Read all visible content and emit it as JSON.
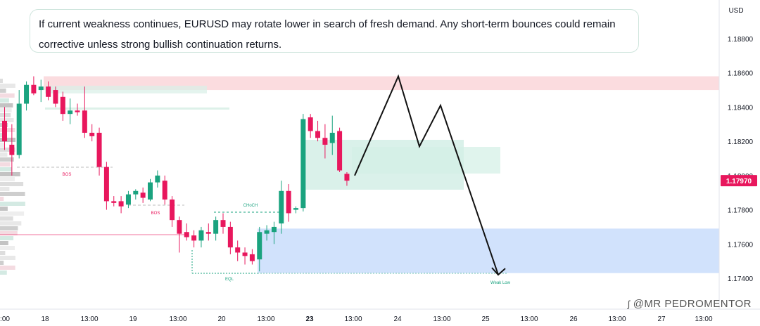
{
  "annotation": {
    "text": "If current weakness continues, EURUSD may rotate lower in search of fresh demand. Any short-term bounces could remain corrective unless strong bullish continuation returns."
  },
  "watermark": {
    "text": "@MR PEDROMENTOR",
    "icon": "signature-icon"
  },
  "colors": {
    "bull": "#1aa37f",
    "bear": "#e8175d",
    "supply_zone": "#f9c5ca",
    "demand_zone": "#c2d8fb",
    "fvg_zone": "#d3efe6",
    "price_tag": "#e8175d"
  },
  "chart_data": {
    "type": "candlestick",
    "symbol": "EURUSD",
    "currency_label": "USD",
    "ylim": [
      1.1728,
      1.191
    ],
    "y_ticks": [
      1.174,
      1.176,
      1.178,
      1.18,
      1.182,
      1.184,
      1.186,
      1.188
    ],
    "y_tick_labels": [
      "1.17400",
      "1.17600",
      "1.17800",
      "1.18000",
      "1.18200",
      "1.18400",
      "1.18600",
      "1.18800"
    ],
    "current_price": "1.17970",
    "x_tick_labels": [
      ":00",
      "18",
      "13:00",
      "19",
      "13:00",
      "20",
      "13:00",
      "23",
      "13:00",
      "24",
      "13:00",
      "25",
      "13:00",
      "26",
      "13:00",
      "27",
      "13:00"
    ],
    "x_tick_bold": [
      false,
      false,
      false,
      false,
      false,
      false,
      false,
      true,
      false,
      false,
      false,
      false,
      false,
      false,
      false,
      false,
      false
    ],
    "grid": false,
    "candles": [
      {
        "o": 1.1832,
        "h": 1.184,
        "l": 1.1815,
        "c": 1.182
      },
      {
        "o": 1.1818,
        "h": 1.183,
        "l": 1.18,
        "c": 1.1812
      },
      {
        "o": 1.1812,
        "h": 1.185,
        "l": 1.181,
        "c": 1.1842
      },
      {
        "o": 1.1842,
        "h": 1.1855,
        "l": 1.1838,
        "c": 1.1853
      },
      {
        "o": 1.1853,
        "h": 1.1858,
        "l": 1.1847,
        "c": 1.1848
      },
      {
        "o": 1.185,
        "h": 1.1856,
        "l": 1.1843,
        "c": 1.1852
      },
      {
        "o": 1.1852,
        "h": 1.1855,
        "l": 1.1844,
        "c": 1.1846
      },
      {
        "o": 1.185,
        "h": 1.1852,
        "l": 1.184,
        "c": 1.1842
      },
      {
        "o": 1.1846,
        "h": 1.1849,
        "l": 1.1832,
        "c": 1.1836
      },
      {
        "o": 1.1836,
        "h": 1.1845,
        "l": 1.183,
        "c": 1.1838
      },
      {
        "o": 1.1838,
        "h": 1.1842,
        "l": 1.1835,
        "c": 1.1837
      },
      {
        "o": 1.1838,
        "h": 1.1852,
        "l": 1.1822,
        "c": 1.1825
      },
      {
        "o": 1.1825,
        "h": 1.183,
        "l": 1.182,
        "c": 1.1823
      },
      {
        "o": 1.1825,
        "h": 1.1828,
        "l": 1.18,
        "c": 1.1805
      },
      {
        "o": 1.1805,
        "h": 1.1808,
        "l": 1.178,
        "c": 1.1785
      },
      {
        "o": 1.1785,
        "h": 1.1788,
        "l": 1.1782,
        "c": 1.1784
      },
      {
        "o": 1.1785,
        "h": 1.1788,
        "l": 1.1778,
        "c": 1.1782
      },
      {
        "o": 1.1783,
        "h": 1.1791,
        "l": 1.1781,
        "c": 1.1789
      },
      {
        "o": 1.1789,
        "h": 1.1792,
        "l": 1.1786,
        "c": 1.1791
      },
      {
        "o": 1.179,
        "h": 1.1793,
        "l": 1.1784,
        "c": 1.1787
      },
      {
        "o": 1.1786,
        "h": 1.1798,
        "l": 1.1785,
        "c": 1.1796
      },
      {
        "o": 1.1796,
        "h": 1.1803,
        "l": 1.1793,
        "c": 1.18
      },
      {
        "o": 1.1797,
        "h": 1.18,
        "l": 1.1783,
        "c": 1.1786
      },
      {
        "o": 1.1786,
        "h": 1.1788,
        "l": 1.177,
        "c": 1.1774
      },
      {
        "o": 1.1774,
        "h": 1.1776,
        "l": 1.1755,
        "c": 1.1766
      },
      {
        "o": 1.1767,
        "h": 1.1772,
        "l": 1.1762,
        "c": 1.1764
      },
      {
        "o": 1.1765,
        "h": 1.1768,
        "l": 1.1758,
        "c": 1.1762
      },
      {
        "o": 1.1762,
        "h": 1.177,
        "l": 1.1758,
        "c": 1.1768
      },
      {
        "o": 1.1767,
        "h": 1.1772,
        "l": 1.1762,
        "c": 1.1766
      },
      {
        "o": 1.1766,
        "h": 1.1776,
        "l": 1.1762,
        "c": 1.1774
      },
      {
        "o": 1.1774,
        "h": 1.1778,
        "l": 1.1766,
        "c": 1.177
      },
      {
        "o": 1.177,
        "h": 1.1773,
        "l": 1.1754,
        "c": 1.1758
      },
      {
        "o": 1.1758,
        "h": 1.1762,
        "l": 1.175,
        "c": 1.1755
      },
      {
        "o": 1.1755,
        "h": 1.1758,
        "l": 1.1748,
        "c": 1.1753
      },
      {
        "o": 1.1754,
        "h": 1.1757,
        "l": 1.1748,
        "c": 1.175
      },
      {
        "o": 1.1751,
        "h": 1.177,
        "l": 1.1744,
        "c": 1.1767
      },
      {
        "o": 1.1766,
        "h": 1.1771,
        "l": 1.1762,
        "c": 1.1768
      },
      {
        "o": 1.1767,
        "h": 1.1773,
        "l": 1.176,
        "c": 1.177
      },
      {
        "o": 1.1772,
        "h": 1.1797,
        "l": 1.1766,
        "c": 1.1791
      },
      {
        "o": 1.1791,
        "h": 1.1795,
        "l": 1.1773,
        "c": 1.1778
      },
      {
        "o": 1.178,
        "h": 1.1782,
        "l": 1.1778,
        "c": 1.1781
      },
      {
        "o": 1.1781,
        "h": 1.1836,
        "l": 1.1779,
        "c": 1.1833
      },
      {
        "o": 1.1834,
        "h": 1.1836,
        "l": 1.1822,
        "c": 1.1826
      },
      {
        "o": 1.1826,
        "h": 1.1832,
        "l": 1.182,
        "c": 1.1822
      },
      {
        "o": 1.1822,
        "h": 1.183,
        "l": 1.181,
        "c": 1.1818
      },
      {
        "o": 1.1819,
        "h": 1.1835,
        "l": 1.1812,
        "c": 1.1825
      },
      {
        "o": 1.1826,
        "h": 1.1828,
        "l": 1.1802,
        "c": 1.1803
      },
      {
        "o": 1.1801,
        "h": 1.1802,
        "l": 1.1794,
        "c": 1.1797
      }
    ],
    "zones": [
      {
        "name": "supply",
        "y_top": 1.1858,
        "y_bottom": 1.185
      },
      {
        "name": "demand",
        "y_top": 1.1769,
        "y_bottom": 1.1743
      },
      {
        "name": "fvg-upper",
        "y_top": 1.182,
        "y_bottom": 1.1791
      },
      {
        "name": "fvg-right",
        "y_top": 1.1816,
        "y_bottom": 1.18
      }
    ],
    "annotations": [
      {
        "text": "BOS",
        "kind": "bos"
      },
      {
        "text": "BOS",
        "kind": "bos"
      },
      {
        "text": "CHoCH",
        "kind": "choch"
      },
      {
        "text": "EQL",
        "kind": "eql"
      },
      {
        "text": "Weak Low",
        "kind": "weak-low"
      }
    ],
    "projection": {
      "prices": [
        1.18,
        1.1858,
        1.1817,
        1.1841,
        1.1742
      ]
    }
  }
}
